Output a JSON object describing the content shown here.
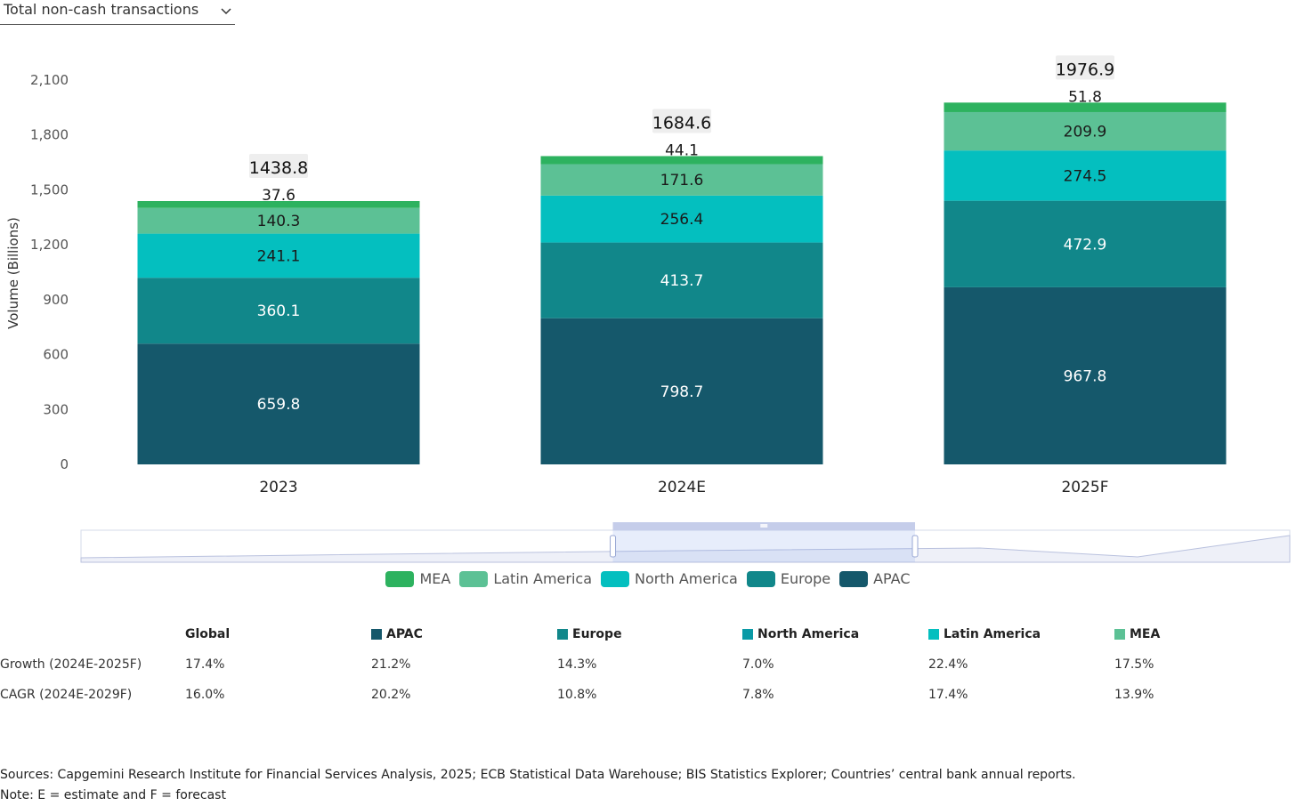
{
  "dropdown": {
    "label": "Total non-cash transactions",
    "icon": "chevron-down-icon"
  },
  "chart_data": {
    "type": "bar",
    "stacked": true,
    "categories": [
      "2023",
      "2024E",
      "2025F"
    ],
    "ylabel": "Volume (Billions)",
    "ylim": [
      0,
      2100
    ],
    "yticks": [
      0,
      300,
      600,
      900,
      1200,
      1500,
      1800,
      2100
    ],
    "ytick_labels": [
      "0",
      "300",
      "600",
      "900",
      "1,200",
      "1,500",
      "1,800",
      "2,100"
    ],
    "totals": [
      "1438.8",
      "1684.6",
      "1976.9"
    ],
    "series": [
      {
        "name": "APAC",
        "color": "#15586b",
        "values": [
          659.8,
          798.7,
          967.8
        ],
        "labels": [
          "659.8",
          "798.7",
          "967.8"
        ]
      },
      {
        "name": "Europe",
        "color": "#11878a",
        "values": [
          360.1,
          413.7,
          472.9
        ],
        "labels": [
          "360.1",
          "413.7",
          "472.9"
        ]
      },
      {
        "name": "North America",
        "color": "#04bfbf",
        "values": [
          241.1,
          256.4,
          274.5
        ],
        "labels": [
          "241.1",
          "256.4",
          "274.5"
        ]
      },
      {
        "name": "Latin America",
        "color": "#5cc195",
        "values": [
          140.3,
          171.6,
          209.9
        ],
        "labels": [
          "140.3",
          "171.6",
          "209.9"
        ]
      },
      {
        "name": "MEA",
        "color": "#2db25f",
        "values": [
          37.6,
          44.1,
          51.8
        ],
        "labels": [
          "37.6",
          "44.1",
          "51.8"
        ]
      }
    ],
    "legend_order": [
      "MEA",
      "Latin America",
      "North America",
      "Europe",
      "APAC"
    ],
    "legend_position": "bottom",
    "grid": false
  },
  "datazoom": {
    "window_start": 0.44,
    "window_end": 0.69,
    "handle_icon": "grip-icon"
  },
  "stats_table": {
    "headers": [
      {
        "label": "",
        "color": ""
      },
      {
        "label": "Global",
        "color": ""
      },
      {
        "label": "APAC",
        "color": "#15586b"
      },
      {
        "label": "Europe",
        "color": "#11878a"
      },
      {
        "label": "North America",
        "color": "#0a9aa6"
      },
      {
        "label": "Latin America",
        "color": "#04bfbf"
      },
      {
        "label": "MEA",
        "color": "#5cc195"
      }
    ],
    "rows": [
      {
        "label": "Growth (2024E-2025F)",
        "values": [
          "17.4%",
          "21.2%",
          "14.3%",
          "7.0%",
          "22.4%",
          "17.5%"
        ]
      },
      {
        "label": "CAGR (2024E-2029F)",
        "values": [
          "16.0%",
          "20.2%",
          "10.8%",
          "7.8%",
          "17.4%",
          "13.9%"
        ]
      }
    ]
  },
  "footer": {
    "sources": "Sources: Capgemini Research Institute for Financial Services Analysis, 2025; ECB Statistical Data Warehouse; BIS Statistics Explorer; Countries’ central bank annual reports.",
    "note": "Note: E = estimate and F = forecast"
  }
}
